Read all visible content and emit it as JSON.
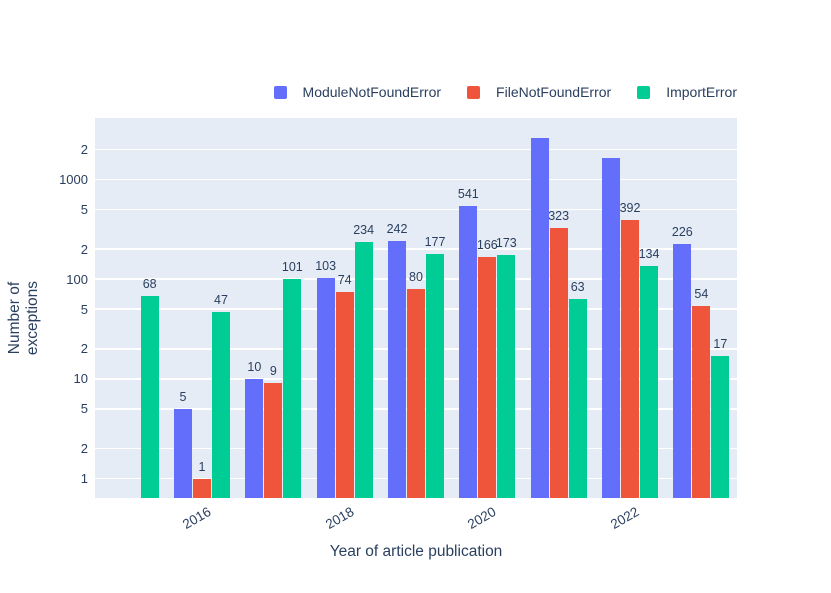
{
  "colors": {
    "background": "#ffffff",
    "plot_background": "#E5ECF6",
    "grid": "#ffffff",
    "text": "#2A3F5F",
    "module_not_found": "#636EFA",
    "file_not_found": "#EF553B",
    "import_error": "#00CC96"
  },
  "legend": {
    "items": [
      {
        "label": "ModuleNotFoundError",
        "color": "#636EFA"
      },
      {
        "label": "FileNotFoundError",
        "color": "#EF553B"
      },
      {
        "label": "ImportError",
        "color": "#00CC96"
      }
    ]
  },
  "chart_data": {
    "type": "bar",
    "title": "",
    "xlabel": "Year of article publication",
    "ylabel": "Number of exceptions",
    "yscale": "log",
    "ylim": [
      0.64,
      4120
    ],
    "grid": true,
    "legend_position": "top-right-horizontal",
    "categories": [
      2015,
      2016,
      2017,
      2018,
      2019,
      2020,
      2021,
      2022,
      2023
    ],
    "x_tick_labels": [
      "",
      "2016",
      "",
      "2018",
      "",
      "2020",
      "",
      "2022",
      ""
    ],
    "y_ticks": [
      {
        "value": 1,
        "label": "1"
      },
      {
        "value": 2,
        "label": "2"
      },
      {
        "value": 5,
        "label": "5"
      },
      {
        "value": 10,
        "label": "10"
      },
      {
        "value": 20,
        "label": "2"
      },
      {
        "value": 50,
        "label": "5"
      },
      {
        "value": 100,
        "label": "100"
      },
      {
        "value": 200,
        "label": "2"
      },
      {
        "value": 500,
        "label": "5"
      },
      {
        "value": 1000,
        "label": "1000"
      },
      {
        "value": 2000,
        "label": "2"
      }
    ],
    "series": [
      {
        "name": "ModuleNotFoundError",
        "color": "#636EFA",
        "values": [
          null,
          5,
          10,
          103,
          242,
          541,
          2600,
          1630,
          226
        ],
        "bar_labels": [
          "",
          "5",
          "10",
          "103",
          "242",
          "541",
          "",
          "",
          "226"
        ]
      },
      {
        "name": "FileNotFoundError",
        "color": "#EF553B",
        "values": [
          null,
          1,
          9,
          74,
          80,
          166,
          323,
          392,
          54
        ],
        "bar_labels": [
          "",
          "1",
          "9",
          "74",
          "80",
          "166",
          "323",
          "392",
          "54"
        ]
      },
      {
        "name": "ImportError",
        "color": "#00CC96",
        "values": [
          68,
          47,
          101,
          234,
          177,
          173,
          63,
          134,
          17
        ],
        "bar_labels": [
          "68",
          "47",
          "101",
          "234",
          "177",
          "173",
          "63",
          "134",
          "17"
        ]
      }
    ]
  }
}
